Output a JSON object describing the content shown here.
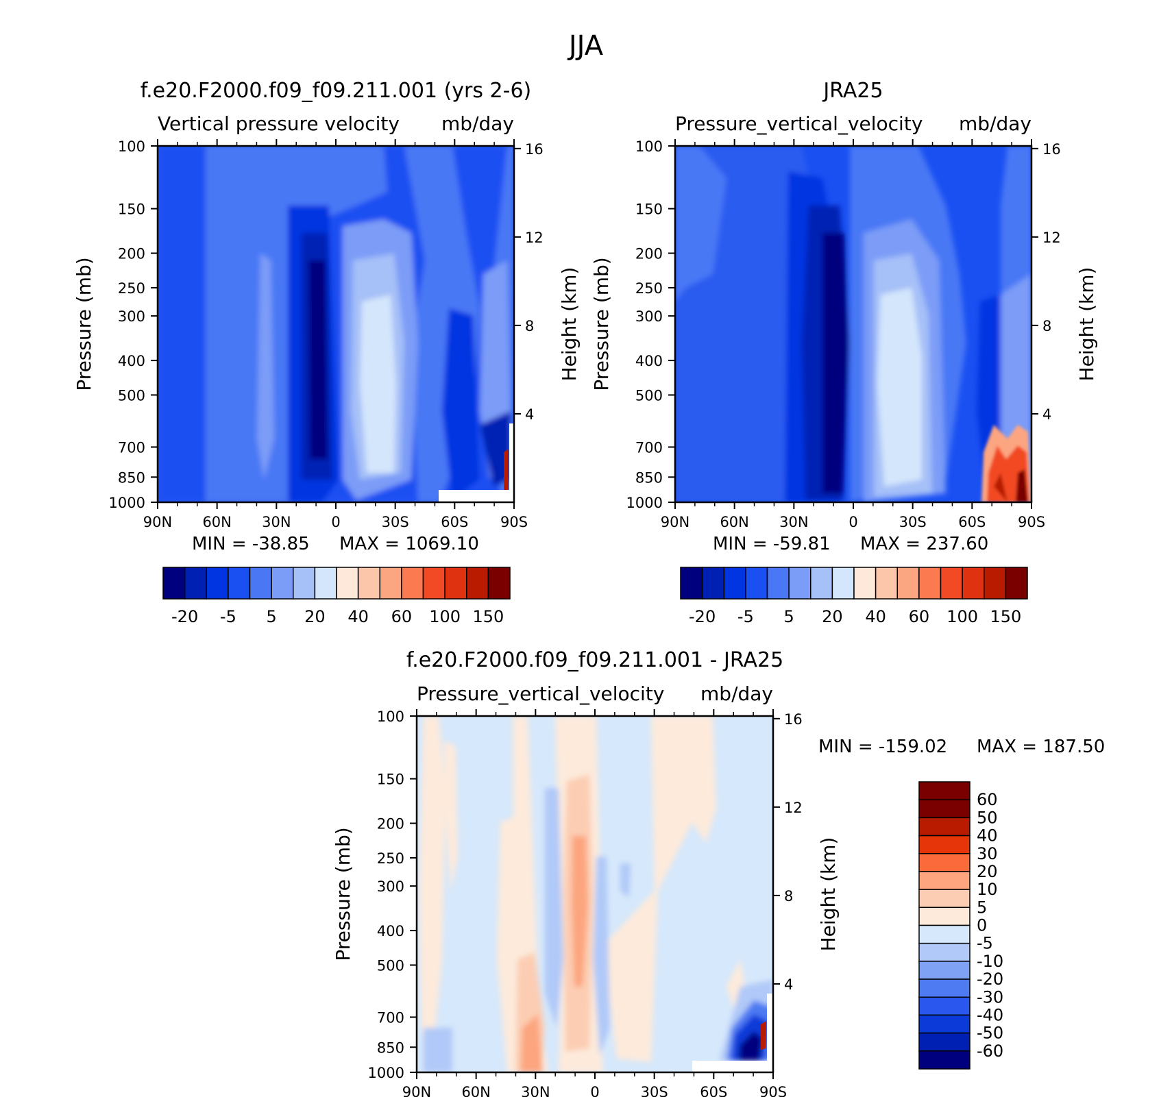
{
  "figure_title": "JJA",
  "chart_data": [
    {
      "type": "heatmap",
      "title": "f.e20.F2000.f09_f09.211.001 (yrs 2-6)",
      "subtitle_left": "Vertical pressure velocity",
      "subtitle_right": "mb/day",
      "ylabel": "Pressure (mb)",
      "ylabel_right": "Height (km)",
      "x_ticks": [
        "90N",
        "60N",
        "30N",
        "0",
        "30S",
        "60S",
        "90S"
      ],
      "y_ticks": [
        100,
        150,
        200,
        250,
        300,
        400,
        500,
        700,
        850,
        1000
      ],
      "y_right_ticks": [
        16,
        12,
        8,
        4
      ],
      "ylim": [
        1000,
        100
      ],
      "xlim": [
        90,
        -90
      ],
      "y_scale": "log",
      "min_label": "MIN = -38.85",
      "max_label": "MAX = 1069.10",
      "min": -38.85,
      "max": 1069.1,
      "colorbar": {
        "orientation": "horizontal",
        "labels": [
          "-20",
          "-5",
          "5",
          "20",
          "40",
          "60",
          "100",
          "150"
        ],
        "levels": [
          -30,
          -20,
          -10,
          -5,
          0,
          5,
          10,
          20,
          30,
          40,
          50,
          60,
          80,
          100,
          125,
          150
        ]
      }
    },
    {
      "type": "heatmap",
      "title": "JRA25",
      "subtitle_left": "Pressure_vertical_velocity",
      "subtitle_right": "mb/day",
      "ylabel": "Pressure (mb)",
      "ylabel_right": "Height (km)",
      "x_ticks": [
        "90N",
        "60N",
        "30N",
        "0",
        "30S",
        "60S",
        "90S"
      ],
      "y_ticks": [
        100,
        150,
        200,
        250,
        300,
        400,
        500,
        700,
        850,
        1000
      ],
      "y_right_ticks": [
        16,
        12,
        8,
        4
      ],
      "ylim": [
        1000,
        100
      ],
      "xlim": [
        90,
        -90
      ],
      "y_scale": "log",
      "min_label": "MIN = -59.81",
      "max_label": "MAX = 237.60",
      "min": -59.81,
      "max": 237.6,
      "colorbar": {
        "orientation": "horizontal",
        "labels": [
          "-20",
          "-5",
          "5",
          "20",
          "40",
          "60",
          "100",
          "150"
        ],
        "levels": [
          -30,
          -20,
          -10,
          -5,
          0,
          5,
          10,
          20,
          30,
          40,
          50,
          60,
          80,
          100,
          125,
          150
        ]
      }
    },
    {
      "type": "heatmap",
      "title": "f.e20.F2000.f09_f09.211.001 - JRA25",
      "subtitle_left": "Pressure_vertical_velocity",
      "subtitle_right": "mb/day",
      "ylabel": "Pressure (mb)",
      "ylabel_right": "Height (km)",
      "x_ticks": [
        "90N",
        "60N",
        "30N",
        "0",
        "30S",
        "60S",
        "90S"
      ],
      "y_ticks": [
        100,
        150,
        200,
        250,
        300,
        400,
        500,
        700,
        850,
        1000
      ],
      "y_right_ticks": [
        16,
        12,
        8,
        4
      ],
      "ylim": [
        1000,
        100
      ],
      "xlim": [
        90,
        -90
      ],
      "y_scale": "log",
      "min_label": "MIN = -159.02",
      "max_label": "MAX = 187.50",
      "min": -159.02,
      "max": 187.5,
      "colorbar": {
        "orientation": "vertical",
        "labels": [
          "60",
          "50",
          "40",
          "30",
          "20",
          "10",
          "5",
          "0",
          "-5",
          "-10",
          "-20",
          "-30",
          "-40",
          "-50",
          "-60"
        ]
      }
    }
  ],
  "palettes": {
    "abs": [
      "#00007f",
      "#0020b4",
      "#0035e1",
      "#1a50f2",
      "#4a78f5",
      "#7b9cf7",
      "#a6c0f8",
      "#d4e6fb",
      "#fde8da",
      "#fcc6aa",
      "#fca581",
      "#fb7a4f",
      "#f24a24",
      "#df3210",
      "#b81b00",
      "#7a0000"
    ],
    "diff": [
      "#7a0000",
      "#b81b00",
      "#e63508",
      "#fb6a3a",
      "#fca57e",
      "#fccdb2",
      "#fdeadb",
      "#d6e8fb",
      "#b0c9f8",
      "#80a2f5",
      "#4e7af2",
      "#2a57ed",
      "#0c3ad9",
      "#0020b4",
      "#00007f"
    ]
  }
}
